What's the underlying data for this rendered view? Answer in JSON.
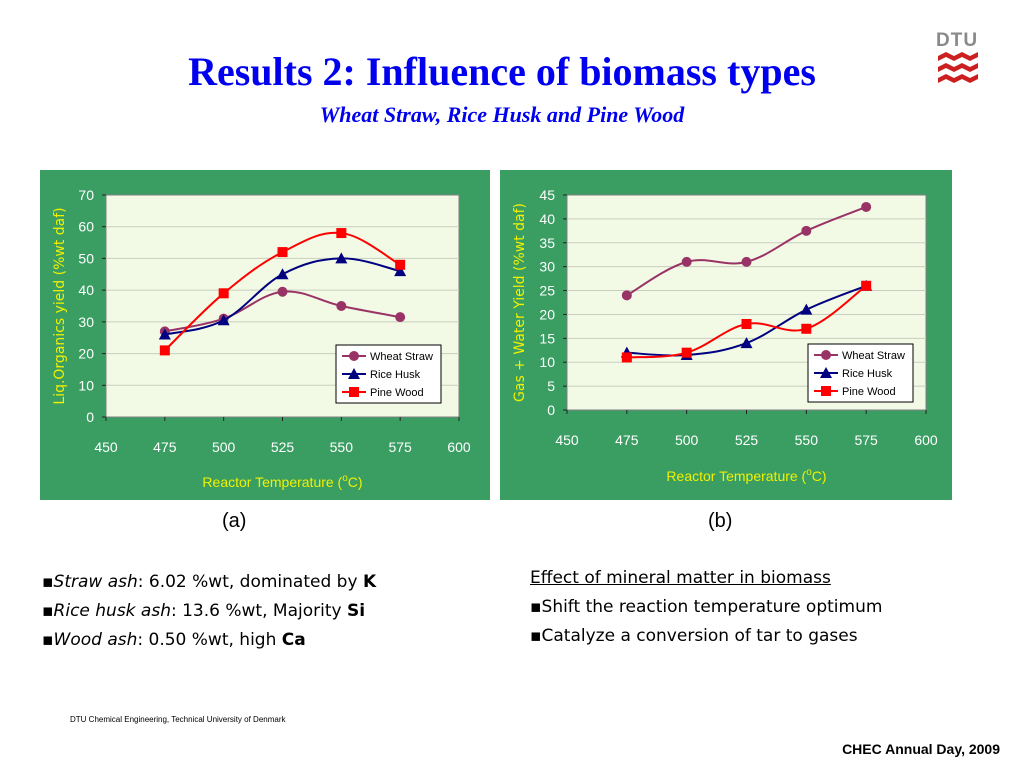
{
  "slide": {
    "title": "Results 2: Influence of biomass types",
    "subtitle": "Wheat Straw, Rice Husk and Pine Wood",
    "logo_text": "DTU",
    "panel_a_label": "(a)",
    "panel_b_label": "(b)",
    "footer_left": "DTU Chemical Engineering, Technical University of Denmark",
    "footer_right": "CHEC Annual Day, 2009"
  },
  "left_bullets": [
    {
      "bullet": "▪",
      "italic": "Straw ash",
      "text": ": 6.02 %wt, dominated by ",
      "bold": "K"
    },
    {
      "bullet": "▪",
      "italic": "Rice husk ash",
      "text": ": 13.6 %wt, Majority ",
      "bold": "Si"
    },
    {
      "bullet": "▪",
      "italic": "Wood ash",
      "text": ": 0.50 %wt, high ",
      "bold": "Ca"
    }
  ],
  "right_bullets": {
    "heading": "Effect of mineral matter in biomass",
    "items": [
      "▪Shift the reaction temperature optimum",
      "▪Catalyze a conversion of tar to gases"
    ]
  },
  "colors": {
    "frame_green": "#3a9e63",
    "plot_bg": "#f2f9e4",
    "axis_label_yellow": "#f0f000",
    "wheat": "#993366",
    "rice": "#000080",
    "pine": "#ff0000",
    "title_blue": "#0000ee"
  },
  "chart_data": [
    {
      "type": "line",
      "xlabel": "Reactor Temperature (oC)",
      "xlabel_main": "Reactor Temperature (",
      "xlabel_sup": "o",
      "xlabel_tail": "C)",
      "ylabel": "Liq.Organics yield (%wt daf)",
      "xlim": [
        450,
        600
      ],
      "ylim": [
        0,
        70
      ],
      "x_ticks": [
        "450",
        "475",
        "500",
        "525",
        "550",
        "575",
        "600"
      ],
      "y_ticks": [
        "0",
        "10",
        "20",
        "30",
        "40",
        "50",
        "60",
        "70"
      ],
      "x": [
        475,
        500,
        525,
        550,
        575
      ],
      "legend_position": "bottom-right",
      "series": [
        {
          "name": "Wheat Straw",
          "marker": "circle",
          "values": [
            27,
            31,
            39.5,
            35,
            31.5
          ]
        },
        {
          "name": "Rice Husk",
          "marker": "triangle",
          "values": [
            26,
            30.5,
            45,
            50,
            46
          ]
        },
        {
          "name": "Pine Wood",
          "marker": "square",
          "values": [
            21,
            39,
            52,
            58,
            48
          ]
        }
      ]
    },
    {
      "type": "line",
      "xlabel": "Reactor Temperature (oC)",
      "xlabel_main": "Reactor Temperature (",
      "xlabel_sup": "o",
      "xlabel_tail": "C)",
      "ylabel": "Gas + Water Yield (%wt daf)",
      "xlim": [
        450,
        600
      ],
      "ylim": [
        0,
        45
      ],
      "x_ticks": [
        "450",
        "475",
        "500",
        "525",
        "550",
        "575",
        "600"
      ],
      "y_ticks": [
        "0",
        "5",
        "10",
        "15",
        "20",
        "25",
        "30",
        "35",
        "40",
        "45"
      ],
      "x": [
        475,
        500,
        525,
        550,
        575
      ],
      "legend_position": "right",
      "series": [
        {
          "name": "Wheat Straw",
          "marker": "circle",
          "values": [
            24,
            31,
            31,
            37.5,
            42.5
          ]
        },
        {
          "name": "Rice Husk",
          "marker": "triangle",
          "values": [
            12,
            11.5,
            14,
            21,
            26
          ]
        },
        {
          "name": "Pine Wood",
          "marker": "square",
          "values": [
            11,
            12,
            18,
            17,
            26
          ]
        }
      ]
    }
  ]
}
